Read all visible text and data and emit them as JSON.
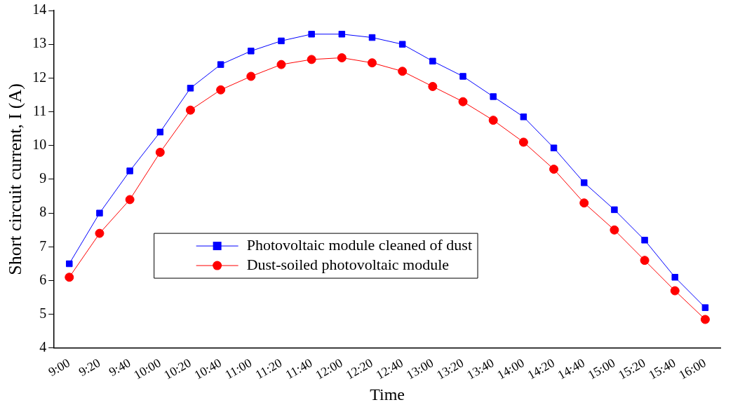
{
  "chart_data": {
    "type": "line",
    "xlabel": "Time",
    "ylabel": "Short circuit current, I (A)",
    "categories": [
      "9:00",
      "9:20",
      "9:40",
      "10:00",
      "10:20",
      "10:40",
      "11:00",
      "11:20",
      "11:40",
      "12:00",
      "12:20",
      "12:40",
      "13:00",
      "13:20",
      "13:40",
      "14:00",
      "14:20",
      "14:40",
      "15:00",
      "15:20",
      "15:40",
      "16:00"
    ],
    "series": [
      {
        "name": "Photovoltaic module cleaned of dust",
        "color": "#0000ff",
        "marker": "square",
        "values": [
          6.5,
          8.0,
          9.25,
          10.4,
          11.7,
          12.4,
          12.8,
          13.1,
          13.3,
          13.3,
          13.2,
          13.0,
          12.5,
          12.05,
          11.45,
          10.85,
          9.93,
          8.9,
          8.1,
          7.2,
          6.1,
          5.2
        ]
      },
      {
        "name": "Dust-soiled photovoltaic module",
        "color": "#ff0000",
        "marker": "circle",
        "values": [
          6.1,
          7.4,
          8.4,
          9.8,
          11.05,
          11.65,
          12.05,
          12.4,
          12.55,
          12.6,
          12.45,
          12.2,
          11.75,
          11.3,
          10.75,
          10.1,
          9.3,
          8.3,
          7.5,
          6.6,
          5.7,
          4.85
        ]
      }
    ],
    "ylim": [
      4,
      14
    ],
    "yticks": [
      4,
      5,
      6,
      7,
      8,
      9,
      10,
      11,
      12,
      13,
      14
    ],
    "grid": false,
    "legend": "center",
    "line_style": "solid"
  }
}
